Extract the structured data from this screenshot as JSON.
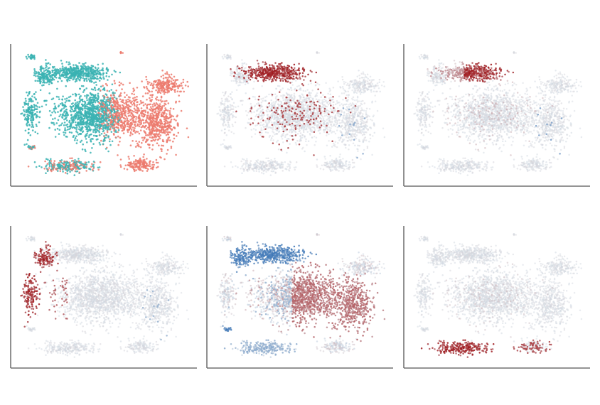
{
  "chart_data": [
    {
      "type": "scatter",
      "coloring": "categorical",
      "groups": [
        {
          "name": "",
          "color": "#3bb3b3"
        },
        {
          "name": "",
          "color": "#ec7b6f"
        }
      ],
      "title": "",
      "xlabel": "",
      "ylabel": "",
      "grid": false,
      "axes": "left-bottom"
    },
    {
      "type": "scatter",
      "coloring": "continuous",
      "colormap": [
        "#3f78b8",
        "#d9dee4",
        "#a01a1e"
      ],
      "highlight": "top-cluster",
      "title": "",
      "xlabel": "",
      "ylabel": "",
      "grid": false,
      "axes": "left-bottom"
    },
    {
      "type": "scatter",
      "coloring": "continuous",
      "colormap": [
        "#3f78b8",
        "#d9dee4",
        "#a01a1e"
      ],
      "highlight": "top-right-cluster",
      "title": "",
      "xlabel": "",
      "ylabel": "",
      "grid": false,
      "axes": "left-bottom"
    },
    {
      "type": "scatter",
      "coloring": "continuous",
      "colormap": [
        "#3f78b8",
        "#d9dee4",
        "#a01a1e"
      ],
      "highlight": "left-edge-cluster",
      "title": "",
      "xlabel": "",
      "ylabel": "",
      "grid": false,
      "axes": "left-bottom"
    },
    {
      "type": "scatter",
      "coloring": "continuous",
      "colormap": [
        "#3f78b8",
        "#d9dee4",
        "#a01a1e"
      ],
      "highlight": "blue-top-orange-right",
      "title": "",
      "xlabel": "",
      "ylabel": "",
      "grid": false,
      "axes": "left-bottom"
    },
    {
      "type": "scatter",
      "coloring": "continuous",
      "colormap": [
        "#3f78b8",
        "#d9dee4",
        "#a01a1e"
      ],
      "highlight": "bottom-cluster",
      "title": "",
      "xlabel": "",
      "ylabel": "",
      "grid": false,
      "axes": "left-bottom"
    }
  ]
}
